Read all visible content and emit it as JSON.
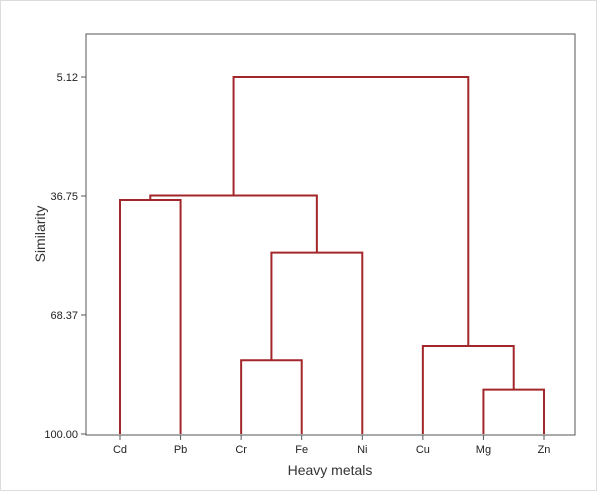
{
  "chart_data": {
    "type": "dendrogram",
    "title": "",
    "xlabel": "Heavy metals",
    "ylabel": "Similarity",
    "ylim": [
      100.0,
      5.12
    ],
    "y_axis_direction": "similarity decreases upward",
    "y_ticks": [
      "5.12",
      "36.75",
      "68.37",
      "100.00"
    ],
    "y_tick_values": [
      5.12,
      36.75,
      68.37,
      100.0
    ],
    "leaves": [
      "Cd",
      "Pb",
      "Cr",
      "Fe",
      "Ni",
      "Cu",
      "Mg",
      "Zn"
    ],
    "merges": [
      {
        "left": "Cr",
        "right": "Fe",
        "similarity": 80.4
      },
      {
        "left": "Mg",
        "right": "Zn",
        "similarity": 88.2
      },
      {
        "left": "Cd",
        "right": "Pb",
        "similarity": 37.8
      },
      {
        "left": "Cr+Fe",
        "right": "Ni",
        "similarity": 51.8
      },
      {
        "left": "Cu",
        "right": "Mg+Zn",
        "similarity": 76.6
      },
      {
        "left": "Cd+Pb",
        "right": "Cr+Fe+Ni",
        "similarity": 36.6
      },
      {
        "left": "Cd+Pb+Cr+Fe+Ni",
        "right": "Cu+Mg+Zn",
        "similarity": 5.12
      }
    ],
    "grid": false,
    "legend": "none",
    "line_color": "#a3262a",
    "axis_color": "#555555"
  }
}
